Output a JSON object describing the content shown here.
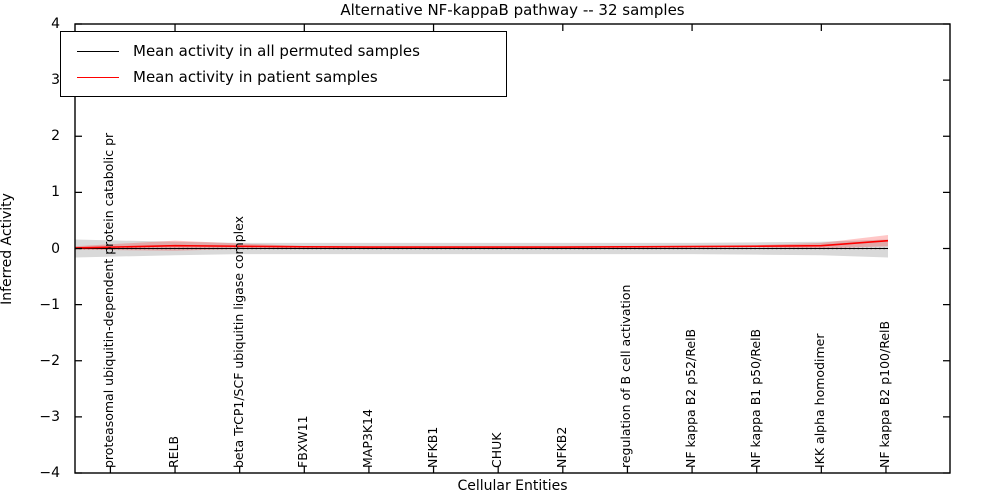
{
  "title": "Alternative NF-kappaB pathway -- 32 samples",
  "legend": {
    "entries": [
      {
        "label": "Mean activity in all permuted samples",
        "color": "#000000"
      },
      {
        "label": "Mean activity in patient samples",
        "color": "#ff0000"
      }
    ]
  },
  "chart_data": {
    "type": "line",
    "title": "Alternative NF-kappaB pathway -- 32 samples",
    "xlabel": "Cellular Entities",
    "ylabel": "Inferred Activity",
    "ylim": [
      -4,
      4
    ],
    "y_tick_values": [
      4,
      3,
      2,
      1,
      0,
      -1,
      -2,
      -3,
      -4
    ],
    "y_tick_labels": [
      "4",
      "3",
      "2",
      "1",
      "0",
      "−1",
      "−2",
      "−3",
      "−4"
    ],
    "grid": false,
    "legend_position": "upper left",
    "categories": [
      "proteasomal ubiquitin-dependent protein catabolic pr",
      "RELB",
      "beta TrCP1/SCF ubiquitin ligase complex",
      "FBXW11",
      "MAP3K14",
      "NFKB1",
      "CHUK",
      "NFKB2",
      "regulation of B cell activation",
      "NF kappa B2 p52/RelB",
      "NF kappa B1 p50/RelB",
      "IKK alpha homodimer",
      "NF kappa B2 p100/RelB"
    ],
    "series": [
      {
        "name": "Mean activity in all permuted samples",
        "color": "#000000",
        "style": "solid-with-dotted-zero-line",
        "values": [
          0,
          0,
          0,
          0,
          0,
          0,
          0,
          0,
          0,
          0,
          0,
          0,
          0
        ],
        "band_halfwidth": [
          0.16,
          0.12,
          0.1,
          0.1,
          0.1,
          0.1,
          0.1,
          0.1,
          0.1,
          0.1,
          0.11,
          0.12,
          0.16
        ],
        "band_color": "#d9d9d9"
      },
      {
        "name": "Mean activity in patient samples",
        "color": "#ff0000",
        "style": "solid",
        "values": [
          0.01,
          0.05,
          0.04,
          0.03,
          0.025,
          0.025,
          0.025,
          0.025,
          0.03,
          0.035,
          0.04,
          0.05,
          0.14
        ],
        "band_halfwidth": [
          0.03,
          0.09,
          0.05,
          0.012,
          0.01,
          0.01,
          0.01,
          0.01,
          0.012,
          0.015,
          0.02,
          0.05,
          0.1
        ],
        "band_color": "rgba(255,0,0,0.22)"
      }
    ]
  }
}
